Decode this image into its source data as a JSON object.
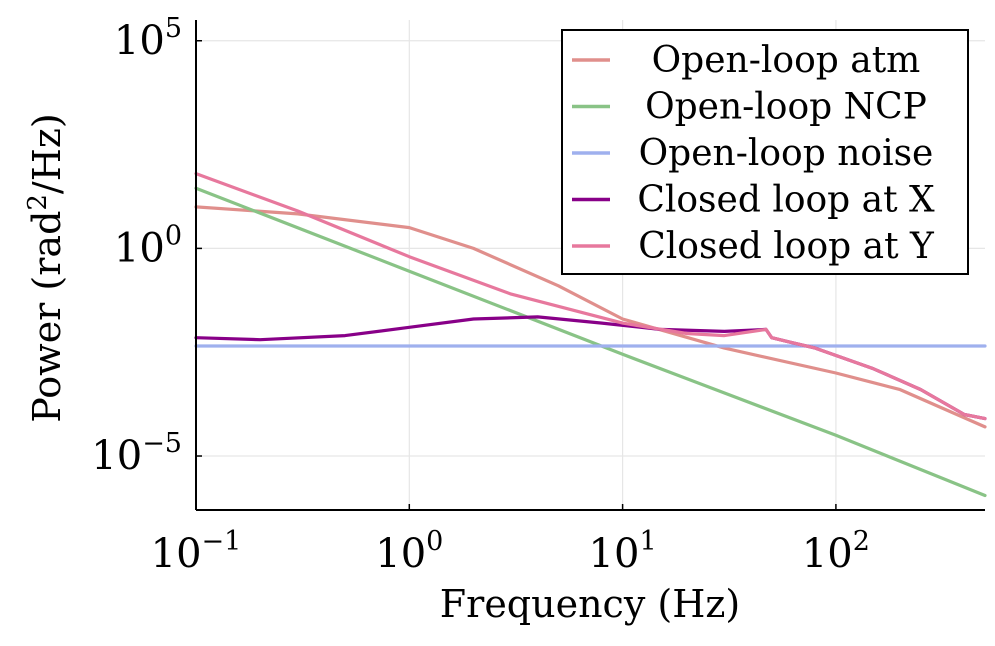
{
  "chart_data": {
    "type": "line",
    "title": "",
    "xlabel": "Frequency (Hz)",
    "ylabel": {
      "prefix": "Power (rad",
      "sup": "2",
      "suffix": "/Hz)"
    },
    "xscale": "log",
    "yscale": "log",
    "xlim": [
      0.1,
      500
    ],
    "ylim_exp": [
      -6.3,
      5.5
    ],
    "grid": true,
    "legend_position": "top-right",
    "xticks": [
      {
        "value": 0.1,
        "base": "10",
        "exp": "−1"
      },
      {
        "value": 1,
        "base": "10",
        "exp": "0"
      },
      {
        "value": 10,
        "base": "10",
        "exp": "1"
      },
      {
        "value": 100,
        "base": "10",
        "exp": "2"
      }
    ],
    "yticks": [
      {
        "value_exp": 5,
        "base": "10",
        "exp": "5"
      },
      {
        "value_exp": 0,
        "base": "10",
        "exp": "0"
      },
      {
        "value_exp": -5,
        "base": "10",
        "exp": "−5"
      }
    ],
    "series": [
      {
        "name": "Open-loop atm",
        "color": "#e08f8c",
        "points": [
          [
            0.1,
            1.0
          ],
          [
            0.3,
            0.83
          ],
          [
            1,
            0.5
          ],
          [
            2,
            0.0
          ],
          [
            5,
            -0.9
          ],
          [
            10,
            -1.7
          ],
          [
            30,
            -2.4
          ],
          [
            100,
            -3.0
          ],
          [
            200,
            -3.4
          ],
          [
            500,
            -4.3
          ]
        ]
      },
      {
        "name": "Open-loop NCP",
        "color": "#89c386",
        "points": [
          [
            0.1,
            1.45
          ],
          [
            1,
            -0.55
          ],
          [
            10,
            -2.55
          ],
          [
            100,
            -4.5
          ],
          [
            500,
            -5.95
          ]
        ]
      },
      {
        "name": "Open-loop noise",
        "color": "#9fb0ee",
        "points": [
          [
            0.1,
            -2.35
          ],
          [
            500,
            -2.35
          ]
        ]
      },
      {
        "name": "Closed loop at X",
        "color": "#880088",
        "points": [
          [
            0.1,
            -2.15
          ],
          [
            0.2,
            -2.2
          ],
          [
            0.5,
            -2.1
          ],
          [
            1,
            -1.9
          ],
          [
            2,
            -1.7
          ],
          [
            4,
            -1.65
          ],
          [
            8,
            -1.8
          ],
          [
            15,
            -1.95
          ],
          [
            30,
            -2.0
          ],
          [
            47,
            -1.95
          ],
          [
            50,
            -2.15
          ],
          [
            60,
            -2.25
          ],
          [
            80,
            -2.4
          ],
          [
            150,
            -2.9
          ],
          [
            250,
            -3.4
          ],
          [
            400,
            -4.0
          ],
          [
            500,
            -4.1
          ]
        ]
      },
      {
        "name": "Closed loop at Y",
        "color": "#e7789d",
        "points": [
          [
            0.1,
            1.8
          ],
          [
            0.3,
            0.9
          ],
          [
            1,
            -0.2
          ],
          [
            3,
            -1.1
          ],
          [
            10,
            -1.8
          ],
          [
            20,
            -2.05
          ],
          [
            30,
            -2.1
          ],
          [
            47,
            -1.95
          ],
          [
            50,
            -2.15
          ],
          [
            60,
            -2.25
          ],
          [
            80,
            -2.4
          ],
          [
            150,
            -2.9
          ],
          [
            250,
            -3.4
          ],
          [
            400,
            -4.0
          ],
          [
            500,
            -4.1
          ]
        ]
      }
    ]
  }
}
